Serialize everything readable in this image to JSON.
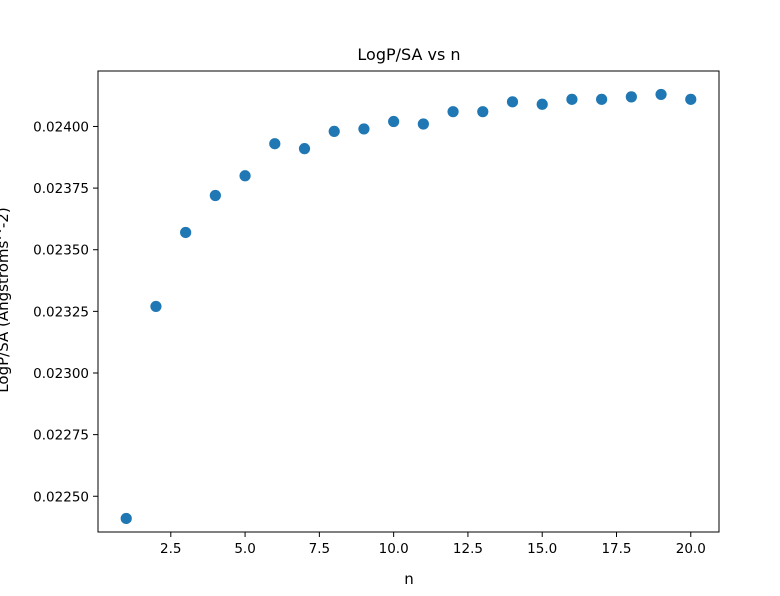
{
  "chart_data": {
    "type": "scatter",
    "title": "LogP/SA vs n",
    "xlabel": "n",
    "ylabel": "LogP/SA (Angstroms^-2)",
    "xlim": [
      0.05,
      20.95
    ],
    "ylim": [
      0.022355,
      0.024225
    ],
    "xticks": [
      2.5,
      5.0,
      7.5,
      10.0,
      12.5,
      15.0,
      17.5,
      20.0
    ],
    "xtick_labels": [
      "2.5",
      "5.0",
      "7.5",
      "10.0",
      "12.5",
      "15.0",
      "17.5",
      "20.0"
    ],
    "yticks": [
      0.0225,
      0.02275,
      0.023,
      0.02325,
      0.0235,
      0.02375,
      0.024
    ],
    "ytick_labels": [
      "0.02250",
      "0.02275",
      "0.02300",
      "0.02325",
      "0.02350",
      "0.02375",
      "0.02400"
    ],
    "grid": false,
    "marker_color": "#1f77b4",
    "x": [
      1,
      2,
      3,
      4,
      5,
      6,
      7,
      8,
      9,
      10,
      11,
      12,
      13,
      14,
      15,
      16,
      17,
      18,
      19,
      20
    ],
    "y": [
      0.02241,
      0.02327,
      0.02357,
      0.02372,
      0.0238,
      0.02393,
      0.02391,
      0.02398,
      0.02399,
      0.02402,
      0.02401,
      0.02406,
      0.02406,
      0.0241,
      0.02409,
      0.02411,
      0.02411,
      0.02412,
      0.02413,
      0.02411
    ]
  }
}
